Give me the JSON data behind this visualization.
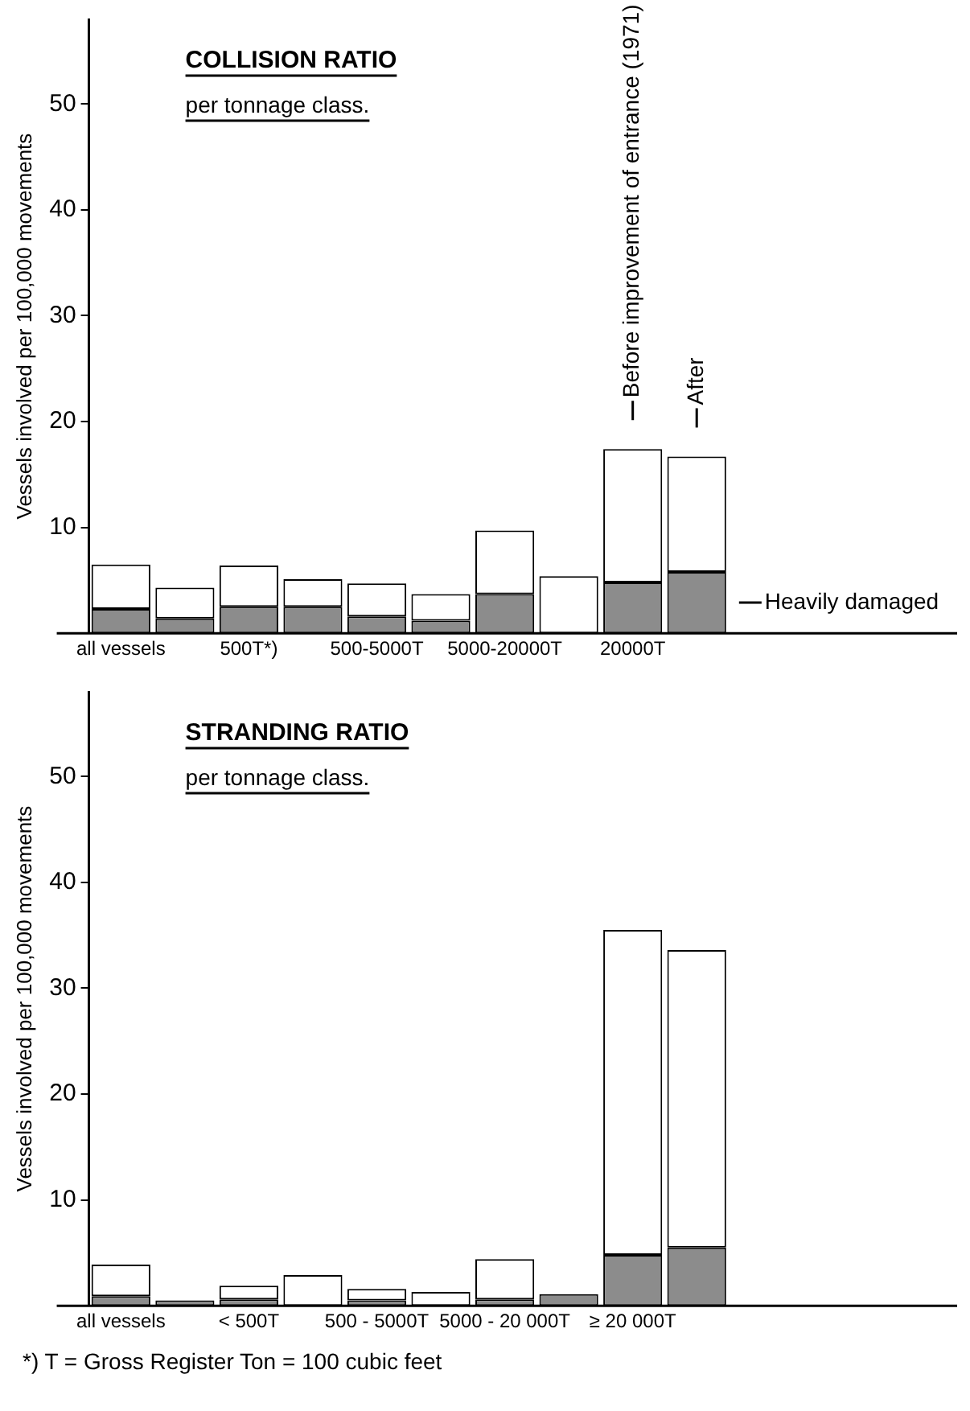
{
  "chart_data": [
    {
      "type": "bar",
      "title": "COLLISION RATIO",
      "subtitle": "per tonnage class.",
      "ylabel": "Vessels involved per 100,000 movements",
      "categories": [
        "all vessels",
        null,
        "500T*)",
        null,
        "500-5000T",
        null,
        "5000-20000T",
        null,
        "20000T",
        null
      ],
      "stacked": true,
      "ylim": [
        0,
        58
      ],
      "yticks": [
        10,
        20,
        30,
        40,
        50
      ],
      "grid": false,
      "annotations": [
        "Before improvement of entrance (1971)",
        "After"
      ],
      "series": [
        {
          "name": "Heavily damaged",
          "color": "#8c8c8c",
          "values": [
            2.3,
            1.4,
            2.5,
            2.5,
            1.6,
            1.2,
            3.7,
            0,
            4.8,
            5.8
          ]
        },
        {
          "color": "#ffffff",
          "values": [
            4.2,
            2.9,
            3.9,
            2.6,
            3.1,
            2.5,
            6.0,
            5.4,
            12.6,
            10.9
          ]
        }
      ]
    },
    {
      "type": "bar",
      "title": "STRANDING RATIO",
      "subtitle": "per tonnage class.",
      "ylabel": "Vessels involved per 100,000 movements",
      "categories": [
        "all vessels",
        null,
        "< 500T",
        null,
        "500 - 5000T",
        null,
        "5000 - 20 000T",
        null,
        "≥ 20 000T",
        null
      ],
      "stacked": true,
      "ylim": [
        0,
        58
      ],
      "yticks": [
        10,
        20,
        30,
        40,
        50
      ],
      "grid": false,
      "annotations": [
        "*) T = Gross Register Ton = 100 cubic feet"
      ],
      "series": [
        {
          "color": "#8c8c8c",
          "values": [
            0.9,
            0.5,
            0.6,
            0,
            0.5,
            0,
            0.6,
            1.1,
            4.8,
            5.5
          ]
        },
        {
          "color": "#ffffff",
          "values": [
            3.0,
            0,
            1.3,
            2.9,
            1.1,
            1.3,
            3.8,
            0,
            30.7,
            28.1
          ]
        }
      ]
    }
  ]
}
